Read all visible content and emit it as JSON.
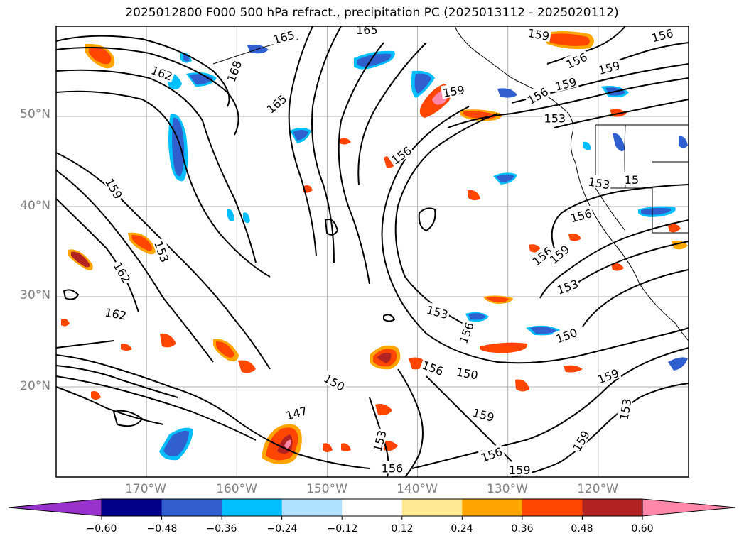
{
  "title": "2025012800 F000 500 hPa refract., precipitation PC (2025013112 - 2025020112)",
  "map": {
    "lat_labels": [
      "50°N",
      "40°N",
      "30°N",
      "20°N"
    ],
    "lon_labels": [
      "170°W",
      "160°W",
      "150°W",
      "140°W",
      "130°W",
      "120°W"
    ],
    "grid_color": "#b0b0b0",
    "contour_color": "#000000",
    "contour_labels": [
      {
        "text": "165",
        "lon": -154.8,
        "lat": 58.8,
        "rot": -15
      },
      {
        "text": "165",
        "lon": -145.6,
        "lat": 59.6,
        "rot": 0
      },
      {
        "text": "159",
        "lon": -126.6,
        "lat": 59.1,
        "rot": 10
      },
      {
        "text": "156",
        "lon": -112.9,
        "lat": 59.0,
        "rot": -15
      },
      {
        "text": "162",
        "lon": -168.3,
        "lat": 54.8,
        "rot": 20
      },
      {
        "text": "168",
        "lon": -160.3,
        "lat": 55.0,
        "rot": -70
      },
      {
        "text": "159",
        "lon": -118.8,
        "lat": 55.4,
        "rot": -15
      },
      {
        "text": "156",
        "lon": -122.4,
        "lat": 56.2,
        "rot": -25
      },
      {
        "text": "165",
        "lon": -155.6,
        "lat": 51.4,
        "rot": -40
      },
      {
        "text": "159",
        "lon": -136.0,
        "lat": 52.8,
        "rot": -10
      },
      {
        "text": "156",
        "lon": -126.7,
        "lat": 52.3,
        "rot": -30
      },
      {
        "text": "159",
        "lon": -123.6,
        "lat": 53.6,
        "rot": -15
      },
      {
        "text": "153",
        "lon": -124.8,
        "lat": 49.8,
        "rot": 0
      },
      {
        "text": "156",
        "lon": -141.8,
        "lat": 45.7,
        "rot": -35
      },
      {
        "text": "159",
        "lon": -173.6,
        "lat": 42.0,
        "rot": 60
      },
      {
        "text": "153",
        "lon": -119.9,
        "lat": 42.6,
        "rot": 10
      },
      {
        "text": "156",
        "lon": -121.9,
        "lat": 39.0,
        "rot": -15
      },
      {
        "text": "156",
        "lon": -126.2,
        "lat": 34.5,
        "rot": -40
      },
      {
        "text": "159",
        "lon": -124.3,
        "lat": 34.7,
        "rot": -40
      },
      {
        "text": "153",
        "lon": -168.3,
        "lat": 35.0,
        "rot": 70
      },
      {
        "text": "162",
        "lon": -172.7,
        "lat": 32.7,
        "rot": 60
      },
      {
        "text": "153",
        "lon": -123.4,
        "lat": 31.1,
        "rot": -20
      },
      {
        "text": "162",
        "lon": -173.4,
        "lat": 28.1,
        "rot": 10
      },
      {
        "text": "153",
        "lon": -137.8,
        "lat": 28.3,
        "rot": 15
      },
      {
        "text": "156",
        "lon": -134.6,
        "lat": 26.0,
        "rot": -70
      },
      {
        "text": "150",
        "lon": -123.5,
        "lat": 25.7,
        "rot": -20
      },
      {
        "text": "156",
        "lon": -138.3,
        "lat": 22.1,
        "rot": 20
      },
      {
        "text": "150",
        "lon": -134.5,
        "lat": 21.5,
        "rot": 10
      },
      {
        "text": "159",
        "lon": -118.9,
        "lat": 21.2,
        "rot": -20
      },
      {
        "text": "150",
        "lon": -149.2,
        "lat": 20.5,
        "rot": 30
      },
      {
        "text": "153",
        "lon": -117.0,
        "lat": 17.5,
        "rot": -80
      },
      {
        "text": "147",
        "lon": -153.4,
        "lat": 17.1,
        "rot": -15
      },
      {
        "text": "159",
        "lon": -132.7,
        "lat": 16.9,
        "rot": 15
      },
      {
        "text": "159",
        "lon": -121.9,
        "lat": 14.0,
        "rot": -60
      },
      {
        "text": "153",
        "lon": -144.2,
        "lat": 14.0,
        "rot": -75
      },
      {
        "text": "156",
        "lon": -131.8,
        "lat": 12.5,
        "rot": -20
      },
      {
        "text": "156",
        "lon": -142.8,
        "lat": 11.0,
        "rot": 0
      },
      {
        "text": "159",
        "lon": -128.7,
        "lat": 10.8,
        "rot": 0
      },
      {
        "text": "15",
        "lon": -116.3,
        "lat": 43.0,
        "rot": 0
      }
    ]
  },
  "colorbar": {
    "colors": [
      "#9932cc",
      "#00008b",
      "#3060cf",
      "#00bfff",
      "#b0e0ff",
      "#ffffff",
      "#ffe993",
      "#ffa500",
      "#ff4500",
      "#b22222",
      "#ff88aa"
    ],
    "tick_labels": [
      "−0.60",
      "−0.48",
      "−0.36",
      "−0.24",
      "−0.12",
      "0.12",
      "0.24",
      "0.36",
      "0.48",
      "0.60"
    ]
  }
}
